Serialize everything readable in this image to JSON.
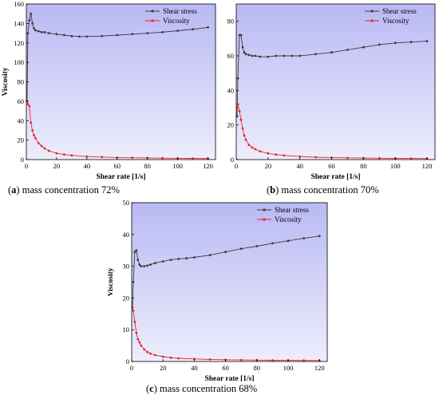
{
  "colors": {
    "plot_bg_top": "#b9b9f4",
    "plot_bg_bottom": "#ededfc",
    "shear_stress": "#3a3a3a",
    "viscosity": "#e8242a"
  },
  "captions": [
    {
      "letter": "a",
      "text": " mass concentration 72%"
    },
    {
      "letter": "b",
      "text": " mass concentration 70%"
    },
    {
      "letter": "c",
      "text": " mass concentration 68%"
    }
  ],
  "chart_data": [
    {
      "type": "line",
      "xlabel": "Shear rate [1/s]",
      "ylabel": "Viscosity",
      "xlim": [
        0,
        125
      ],
      "ylim": [
        0,
        160
      ],
      "xticks": [
        0,
        20,
        40,
        60,
        80,
        100,
        120
      ],
      "yticks": [
        0,
        20,
        40,
        60,
        80,
        100,
        120,
        140,
        160
      ],
      "legend_position": "top-right",
      "series": [
        {
          "name": "Shear stress",
          "x": [
            0.5,
            1,
            2,
            3,
            4,
            5,
            6,
            8,
            10,
            12,
            15,
            20,
            25,
            30,
            35,
            40,
            50,
            60,
            70,
            80,
            90,
            100,
            110,
            120
          ],
          "y": [
            60,
            130,
            143,
            150,
            140,
            135,
            133,
            132,
            131,
            131,
            130,
            129,
            128,
            127,
            126.5,
            126.5,
            127,
            128,
            129,
            130,
            131,
            132.5,
            134,
            136
          ]
        },
        {
          "name": "Viscosity",
          "x": [
            0.5,
            1,
            2,
            3,
            4,
            5,
            6,
            8,
            10,
            12,
            15,
            20,
            25,
            30,
            40,
            50,
            60,
            70,
            80,
            90,
            100,
            110,
            120
          ],
          "y": [
            60,
            57,
            55,
            38,
            30,
            25,
            22,
            17,
            14,
            11.5,
            9,
            6.5,
            5.2,
            4.3,
            3.2,
            2.6,
            2.1,
            1.9,
            1.7,
            1.5,
            1.3,
            1.2,
            1.1
          ]
        }
      ]
    },
    {
      "type": "line",
      "xlabel": "Shear rate [1/s]",
      "ylabel": "Viscosity",
      "xlim": [
        0,
        125
      ],
      "ylim": [
        0,
        90
      ],
      "xticks": [
        0,
        20,
        40,
        60,
        80,
        100,
        120
      ],
      "yticks": [
        0,
        20,
        40,
        60,
        80
      ],
      "legend_position": "top-right",
      "series": [
        {
          "name": "Shear stress",
          "x": [
            0.5,
            1,
            2,
            3,
            4,
            5,
            6,
            8,
            10,
            12,
            15,
            20,
            25,
            30,
            35,
            40,
            50,
            60,
            70,
            80,
            90,
            100,
            110,
            120
          ],
          "y": [
            25,
            47,
            72,
            72,
            65,
            62,
            61,
            60.5,
            60,
            60,
            59.5,
            59.5,
            60,
            60,
            60,
            60,
            61,
            62,
            63.5,
            65,
            66.5,
            67.5,
            68,
            68.5
          ]
        },
        {
          "name": "Viscosity",
          "x": [
            0.5,
            1,
            2,
            3,
            4,
            5,
            6,
            8,
            10,
            12,
            15,
            20,
            25,
            30,
            40,
            50,
            60,
            70,
            80,
            90,
            100,
            110,
            120
          ],
          "y": [
            30,
            32,
            28,
            23,
            18,
            14,
            11.5,
            8.5,
            7,
            6,
            4.8,
            3.6,
            2.9,
            2.4,
            1.8,
            1.4,
            1.2,
            1.0,
            0.9,
            0.8,
            0.7,
            0.65,
            0.6
          ]
        }
      ]
    },
    {
      "type": "line",
      "xlabel": "Shear rate [1/s]",
      "ylabel": "Viscosity",
      "xlim": [
        0,
        125
      ],
      "ylim": [
        0,
        50
      ],
      "xticks": [
        0,
        20,
        40,
        60,
        80,
        100,
        120
      ],
      "yticks": [
        0,
        10,
        20,
        30,
        40,
        50
      ],
      "legend_position": "top-right",
      "series": [
        {
          "name": "Shear stress",
          "x": [
            0.5,
            1,
            2,
            3,
            4,
            5,
            6,
            8,
            10,
            12,
            15,
            20,
            25,
            30,
            35,
            40,
            50,
            60,
            70,
            80,
            90,
            100,
            110,
            120
          ],
          "y": [
            17,
            25,
            34.5,
            35,
            32,
            30.5,
            30,
            30,
            30.2,
            30.5,
            31,
            31.5,
            32,
            32.3,
            32.5,
            32.8,
            33.5,
            34.5,
            35.5,
            36.3,
            37.2,
            38,
            38.8,
            39.5
          ]
        },
        {
          "name": "Viscosity",
          "x": [
            0.5,
            1,
            2,
            3,
            4,
            5,
            6,
            8,
            10,
            12,
            15,
            20,
            25,
            30,
            40,
            50,
            60,
            70,
            80,
            90,
            100,
            110,
            120
          ],
          "y": [
            17,
            16,
            12.5,
            9,
            7,
            6,
            5,
            3.8,
            3,
            2.5,
            2,
            1.5,
            1.2,
            1.0,
            0.8,
            0.65,
            0.55,
            0.48,
            0.42,
            0.38,
            0.34,
            0.32,
            0.3
          ]
        }
      ]
    }
  ]
}
